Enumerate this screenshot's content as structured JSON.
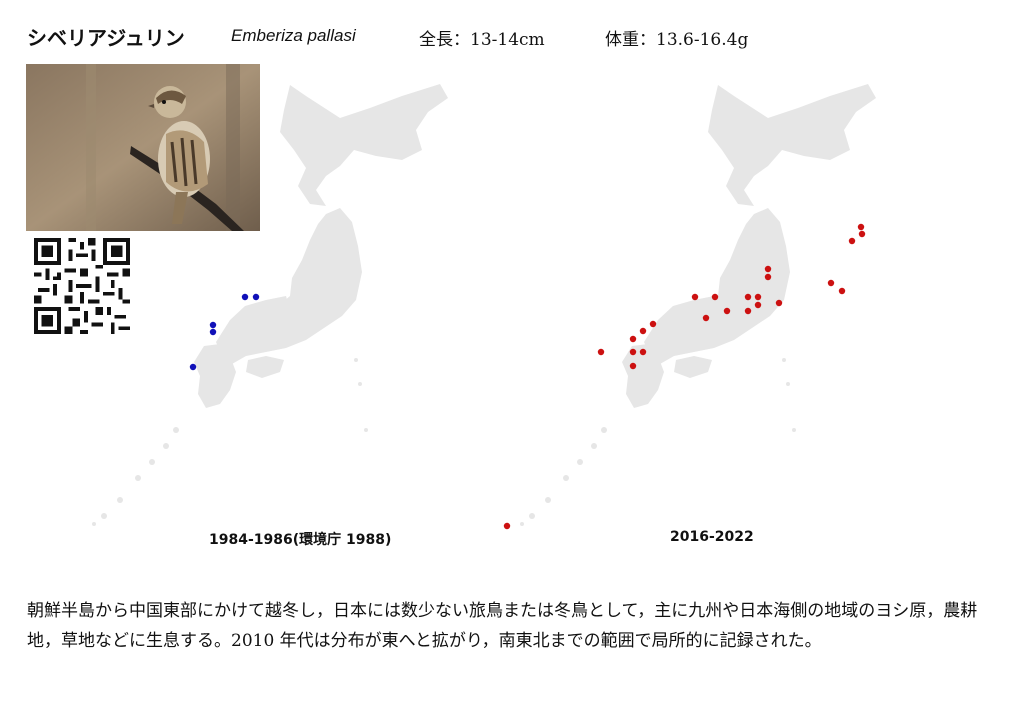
{
  "header": {
    "japanese_name": "シベリアジュリン",
    "scientific_name": "Emberiza pallasi",
    "length": "全長：13-14cm",
    "weight": "体重：13.6-16.4g"
  },
  "maps": [
    {
      "period_label": "1984-1986(環境庁 1988)",
      "marker_color": "#1010b8",
      "marker_description": "blue dots"
    },
    {
      "period_label": "2016-2022",
      "marker_color": "#cc1111",
      "marker_description": "red dots"
    }
  ],
  "colors": {
    "land": "#e6e6e6",
    "background": "#ffffff"
  },
  "icons": {
    "photo": "bird-photo",
    "qr": "qr-code-icon"
  },
  "description": "朝鮮半島から中国東部にかけて越冬し，日本には数少ない旅鳥または冬鳥として，主に九州や日本海側の地域のヨシ原，農耕地，草地などに生息する。2010 年代は分布が東へと拡がり，南東北までの範囲で局所的に記録された。"
}
